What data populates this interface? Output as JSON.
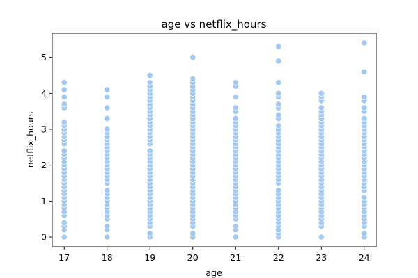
{
  "chart_data": {
    "type": "scatter",
    "title": "age vs netflix_hours",
    "xlabel": "age",
    "ylabel": "netflix_hours",
    "xlim": [
      16.72,
      24.28
    ],
    "ylim": [
      -0.27,
      5.67
    ],
    "xticks": [
      17,
      18,
      19,
      20,
      21,
      22,
      23,
      24
    ],
    "yticks": [
      0,
      1,
      2,
      3,
      4,
      5
    ],
    "grid": false,
    "legend": "none",
    "point_color": "#a1c9f4",
    "series": [
      {
        "points": {
          "17": [
            0,
            0.2,
            0.3,
            0.4,
            0.6,
            0.7,
            0.8,
            0.9,
            1.0,
            1.1,
            1.2,
            1.3,
            1.4,
            1.5,
            1.6,
            1.7,
            1.8,
            1.9,
            2.0,
            2.1,
            2.2,
            2.3,
            2.4,
            2.6,
            2.7,
            2.8,
            2.9,
            3.0,
            3.1,
            3.2,
            3.6,
            3.7,
            3.9,
            4.1,
            4.3
          ],
          "18": [
            0,
            0.2,
            0.3,
            0.5,
            0.6,
            0.7,
            0.8,
            0.9,
            1.0,
            1.1,
            1.2,
            1.3,
            1.5,
            1.6,
            1.7,
            1.8,
            1.9,
            2.0,
            2.1,
            2.2,
            2.3,
            2.4,
            2.5,
            2.6,
            2.7,
            2.8,
            2.9,
            3.0,
            3.3,
            3.6,
            3.9,
            4.1
          ],
          "19": [
            0,
            0.1,
            0.3,
            0.4,
            0.5,
            0.6,
            0.7,
            0.8,
            0.9,
            1.0,
            1.1,
            1.2,
            1.3,
            1.4,
            1.5,
            1.6,
            1.7,
            1.8,
            1.9,
            2.0,
            2.1,
            2.2,
            2.3,
            2.4,
            2.6,
            2.7,
            2.8,
            2.9,
            3.0,
            3.1,
            3.2,
            3.3,
            3.4,
            3.5,
            3.6,
            3.7,
            3.8,
            3.9,
            4.0,
            4.1,
            4.2,
            4.3,
            4.5
          ],
          "20": [
            0,
            0.1,
            0.3,
            0.4,
            0.5,
            0.6,
            0.7,
            0.8,
            0.9,
            1.0,
            1.1,
            1.2,
            1.3,
            1.4,
            1.5,
            1.6,
            1.7,
            1.8,
            1.9,
            2.0,
            2.1,
            2.2,
            2.3,
            2.4,
            2.5,
            2.6,
            2.7,
            2.8,
            2.9,
            3.0,
            3.1,
            3.2,
            3.3,
            3.4,
            3.5,
            3.6,
            3.7,
            3.8,
            3.9,
            4.0,
            4.1,
            4.2,
            4.3,
            4.4,
            5.0
          ],
          "21": [
            0,
            0.2,
            0.3,
            0.5,
            0.6,
            0.7,
            0.8,
            0.9,
            1.0,
            1.1,
            1.2,
            1.3,
            1.4,
            1.5,
            1.6,
            1.7,
            1.8,
            1.9,
            2.0,
            2.1,
            2.2,
            2.3,
            2.4,
            2.5,
            2.6,
            2.7,
            2.8,
            2.9,
            3.0,
            3.1,
            3.2,
            3.3,
            3.5,
            3.6,
            3.9,
            4.2,
            4.3
          ],
          "22": [
            0,
            0.1,
            0.2,
            0.3,
            0.4,
            0.5,
            0.6,
            0.7,
            0.8,
            0.9,
            1.0,
            1.1,
            1.2,
            1.3,
            1.5,
            1.6,
            1.7,
            1.8,
            1.9,
            2.0,
            2.1,
            2.2,
            2.3,
            2.4,
            2.5,
            2.6,
            2.7,
            2.8,
            2.9,
            3.0,
            3.1,
            3.3,
            3.4,
            3.6,
            3.7,
            3.9,
            4.0,
            4.3,
            4.9,
            5.3
          ],
          "23": [
            0,
            0.3,
            0.4,
            0.5,
            0.6,
            0.7,
            0.8,
            0.9,
            1.0,
            1.1,
            1.2,
            1.3,
            1.4,
            1.5,
            1.6,
            1.7,
            1.8,
            1.9,
            2.0,
            2.1,
            2.2,
            2.3,
            2.4,
            2.5,
            2.6,
            2.7,
            2.8,
            2.9,
            3.0,
            3.1,
            3.2,
            3.3,
            3.4,
            3.5,
            3.6,
            3.8,
            3.9,
            4.0
          ],
          "24": [
            0,
            0.1,
            0.3,
            0.4,
            0.5,
            0.6,
            0.7,
            0.8,
            0.9,
            1.0,
            1.1,
            1.3,
            1.4,
            1.5,
            1.6,
            1.7,
            1.8,
            1.9,
            2.0,
            2.1,
            2.2,
            2.3,
            2.4,
            2.5,
            2.6,
            2.7,
            2.8,
            2.9,
            3.0,
            3.1,
            3.2,
            3.3,
            3.5,
            3.6,
            3.8,
            3.9,
            4.6,
            5.4
          ]
        }
      }
    ]
  }
}
